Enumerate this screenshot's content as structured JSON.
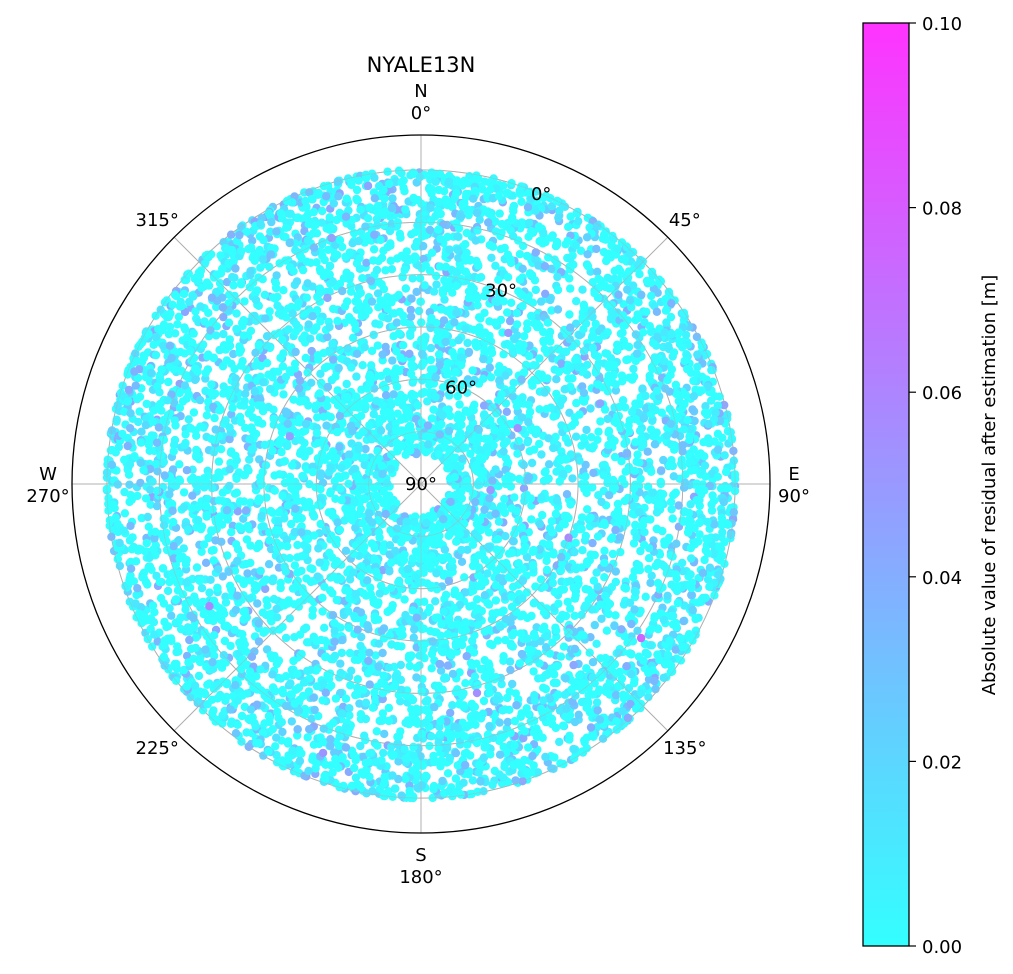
{
  "chart_data": {
    "type": "scatter",
    "subtype": "polar-skyplot",
    "title": "NYALE13N",
    "theta_direction": "clockwise",
    "theta_zero": "N",
    "theta_ticks": [
      {
        "angle": 0,
        "label": "0°",
        "cardinal": "N"
      },
      {
        "angle": 45,
        "label": "45°",
        "cardinal": ""
      },
      {
        "angle": 90,
        "label": "90°",
        "cardinal": "E"
      },
      {
        "angle": 135,
        "label": "135°",
        "cardinal": ""
      },
      {
        "angle": 180,
        "label": "180°",
        "cardinal": "S"
      },
      {
        "angle": 225,
        "label": "225°",
        "cardinal": ""
      },
      {
        "angle": 270,
        "label": "270°",
        "cardinal": "W"
      },
      {
        "angle": 315,
        "label": "315°",
        "cardinal": ""
      }
    ],
    "radial_axis": {
      "quantity": "elevation",
      "rlim": [
        -10,
        90
      ],
      "ticks": [
        {
          "value": 0,
          "label": "0°"
        },
        {
          "value": 30,
          "label": "30°"
        },
        {
          "value": 60,
          "label": "60°"
        },
        {
          "value": 90,
          "label": "90°"
        }
      ],
      "gridlines": [
        0,
        15,
        30,
        45,
        60,
        75
      ],
      "label_angle_deg": 22.5
    },
    "grid": true,
    "point_color_range": [
      0.0,
      0.1
    ],
    "point_elevation_min": 0,
    "elevation_tracks": [
      {
        "elevation": 0.5,
        "density": 0.9
      },
      {
        "elevation": 3,
        "density": 0.9
      },
      {
        "elevation": 6,
        "density": 0.85
      },
      {
        "elevation": 9.5,
        "density": 0.8
      },
      {
        "elevation": 12,
        "density": 0.85
      },
      {
        "elevation": 15,
        "density": 0.8
      },
      {
        "elevation": 18,
        "density": 0.8
      },
      {
        "elevation": 21.5,
        "density": 0.75
      },
      {
        "elevation": 25,
        "density": 0.75
      },
      {
        "elevation": 28,
        "density": 0.7
      },
      {
        "elevation": 31,
        "density": 0.7
      },
      {
        "elevation": 34,
        "density": 0.7
      },
      {
        "elevation": 37,
        "density": 0.65
      },
      {
        "elevation": 40,
        "density": 0.65
      },
      {
        "elevation": 43.5,
        "density": 0.7
      },
      {
        "elevation": 47,
        "density": 0.75
      },
      {
        "elevation": 50,
        "density": 0.7
      },
      {
        "elevation": 53.5,
        "density": 0.75
      },
      {
        "elevation": 57,
        "density": 0.7
      },
      {
        "elevation": 60.5,
        "density": 0.7
      },
      {
        "elevation": 64,
        "density": 0.75
      },
      {
        "elevation": 68,
        "density": 0.8
      },
      {
        "elevation": 71,
        "density": 0.75
      },
      {
        "elevation": 74,
        "density": 0.8
      },
      {
        "elevation": 78,
        "density": 0.85
      },
      {
        "elevation": 80.5,
        "density": 0.7
      }
    ],
    "notable_points": [
      {
        "azimuth": 125,
        "elevation": 13,
        "value": 0.075
      },
      {
        "azimuth": 240,
        "elevation": 20,
        "value": 0.06
      },
      {
        "azimuth": 110,
        "elevation": 45,
        "value": 0.058
      },
      {
        "azimuth": 165,
        "elevation": 28,
        "value": 0.055
      },
      {
        "azimuth": 60,
        "elevation": 58,
        "value": 0.055
      },
      {
        "azimuth": 30,
        "elevation": 40,
        "value": 0.05
      },
      {
        "azimuth": 290,
        "elevation": 50,
        "value": 0.048
      },
      {
        "azimuth": 200,
        "elevation": 8,
        "value": 0.052
      },
      {
        "azimuth": 95,
        "elevation": 70,
        "value": 0.05
      },
      {
        "azimuth": 340,
        "elevation": 15,
        "value": 0.045
      }
    ],
    "colorbar": {
      "label": "Absolute value of residual after estimation [m]",
      "colormap": "cool",
      "clim": [
        0.0,
        0.1
      ],
      "ticks": [
        {
          "value": 0.0,
          "label": "0.00"
        },
        {
          "value": 0.02,
          "label": "0.02"
        },
        {
          "value": 0.04,
          "label": "0.04"
        },
        {
          "value": 0.06,
          "label": "0.06"
        },
        {
          "value": 0.08,
          "label": "0.08"
        },
        {
          "value": 0.1,
          "label": "0.10"
        }
      ],
      "color_low": "#33ffff",
      "color_high": "#ff33ff"
    },
    "colors": {
      "grid": "#b0b0b0",
      "frame": "#000000"
    }
  }
}
